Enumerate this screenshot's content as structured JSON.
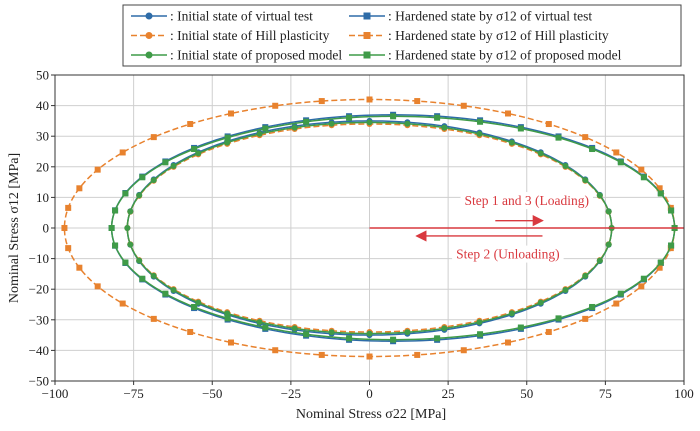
{
  "chart_data": {
    "type": "line",
    "xlabel": "Nominal Stress σ22 [MPa]",
    "ylabel": "Nominal Stress σ12 [MPa]",
    "xlim": [
      -100,
      100
    ],
    "ylim": [
      -50,
      50
    ],
    "xticks": [
      -100,
      -75,
      -50,
      -25,
      0,
      25,
      50,
      75,
      100
    ],
    "yticks": [
      -50,
      -40,
      -30,
      -20,
      -10,
      0,
      10,
      20,
      30,
      40,
      50
    ],
    "grid": true,
    "legend_position": "top",
    "series": [
      {
        "name": ": Initial state of virtual test",
        "color": "#2e6ca8",
        "dash": "solid",
        "marker": "circle",
        "ellipse": {
          "xmin": -77,
          "xmax": 77,
          "ymax": 35,
          "ymin": -35
        }
      },
      {
        "name": ": Initial state of Hill plasticity",
        "color": "#e8822e",
        "dash": "dashed",
        "marker": "circle",
        "ellipse": {
          "xmin": -77,
          "xmax": 77,
          "ymax": 34,
          "ymin": -34
        }
      },
      {
        "name": ": Initial state of proposed model",
        "color": "#3f9b48",
        "dash": "solid",
        "marker": "circle",
        "ellipse": {
          "xmin": -77,
          "xmax": 77,
          "ymax": 34.5,
          "ymin": -34.5
        }
      },
      {
        "name": ": Hardened state by σ12 of virtual test",
        "color": "#2e6ca8",
        "dash": "solid",
        "marker": "square",
        "ellipse": {
          "xmin": -82,
          "xmax": 97,
          "ymax": 37,
          "ymin": -37
        }
      },
      {
        "name": ": Hardened state by σ12 of Hill plasticity",
        "color": "#e8822e",
        "dash": "dashed",
        "marker": "square",
        "ellipse": {
          "xmin": -97,
          "xmax": 97,
          "ymax": 42,
          "ymin": -42
        }
      },
      {
        "name": ": Hardened state by σ12 of proposed model",
        "color": "#3f9b48",
        "dash": "solid",
        "marker": "square",
        "ellipse": {
          "xmin": -82,
          "xmax": 97,
          "ymax": 36.5,
          "ymin": -36.5
        }
      }
    ],
    "annotations": {
      "loading_label": "Step 1 and 3 (Loading)",
      "unloading_label": "Step 2 (Unloading)",
      "path_color": "#d9393f",
      "path_y": 0,
      "loading_arrow_x": [
        40,
        55
      ],
      "loading_arrow_y": 2.4,
      "unloading_arrow_x": [
        55,
        15
      ],
      "unloading_arrow_y": -2.6
    }
  }
}
